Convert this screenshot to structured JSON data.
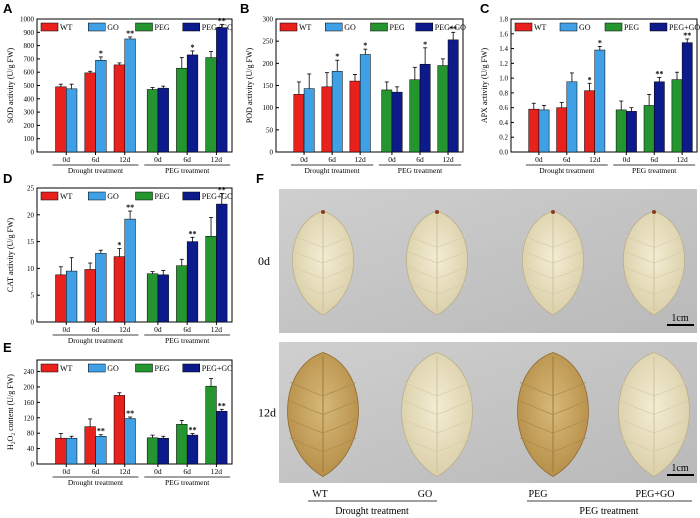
{
  "colors": {
    "WT": "#e8211d",
    "GO": "#3fa0e6",
    "PEG": "#24952f",
    "PEG+GO": "#0d1a8c",
    "axis": "#000000"
  },
  "legend": [
    "WT",
    "GO",
    "PEG",
    "PEG+GO"
  ],
  "chart_data": [
    {
      "panel": "A",
      "type": "bar",
      "ylabel": "SOD activity (U/g FW)",
      "ylim": [
        0,
        1000
      ],
      "yticks": [
        0,
        100,
        200,
        300,
        400,
        500,
        600,
        700,
        800,
        900,
        1000
      ],
      "series": [
        {
          "name": "WT",
          "values": [
            490,
            595,
            655
          ]
        },
        {
          "name": "GO",
          "values": [
            475,
            690,
            850
          ]
        },
        {
          "name": "PEG",
          "values": [
            470,
            630,
            710
          ]
        },
        {
          "name": "PEG+GO",
          "values": [
            480,
            730,
            935
          ]
        }
      ],
      "errors": [
        {
          "name": "WT",
          "values": [
            20,
            12,
            15
          ]
        },
        {
          "name": "GO",
          "values": [
            35,
            25,
            15
          ]
        },
        {
          "name": "PEG",
          "values": [
            15,
            80,
            45
          ]
        },
        {
          "name": "PEG+GO",
          "values": [
            15,
            30,
            25
          ]
        }
      ],
      "marks": [
        {
          "name": "WT",
          "values": [
            "",
            "",
            ""
          ]
        },
        {
          "name": "GO",
          "values": [
            "",
            "*",
            "**"
          ]
        },
        {
          "name": "PEG",
          "values": [
            "",
            "",
            ""
          ]
        },
        {
          "name": "PEG+GO",
          "values": [
            "",
            "*",
            "**"
          ]
        }
      ],
      "groups": [
        {
          "label": "Drought treatment",
          "ticks": [
            "0d",
            "6d",
            "12d"
          ]
        },
        {
          "label": "PEG treatment",
          "ticks": [
            "0d",
            "6d",
            "12d"
          ]
        }
      ]
    },
    {
      "panel": "B",
      "type": "bar",
      "ylabel": "POD activity (U/g FW)",
      "ylim": [
        0,
        300
      ],
      "yticks": [
        0,
        50,
        100,
        150,
        200,
        250,
        300
      ],
      "series": [
        {
          "name": "WT",
          "values": [
            130,
            147,
            160
          ]
        },
        {
          "name": "GO",
          "values": [
            143,
            182,
            220
          ]
        },
        {
          "name": "PEG",
          "values": [
            140,
            163,
            195
          ]
        },
        {
          "name": "PEG+GO",
          "values": [
            135,
            198,
            253
          ]
        }
      ],
      "errors": [
        {
          "name": "WT",
          "values": [
            28,
            32,
            15
          ]
        },
        {
          "name": "GO",
          "values": [
            33,
            25,
            12
          ]
        },
        {
          "name": "PEG",
          "values": [
            18,
            28,
            15
          ]
        },
        {
          "name": "PEG+GO",
          "values": [
            12,
            37,
            17
          ]
        }
      ],
      "marks": [
        {
          "name": "WT",
          "values": [
            "",
            "",
            ""
          ]
        },
        {
          "name": "GO",
          "values": [
            "",
            "*",
            "*"
          ]
        },
        {
          "name": "PEG",
          "values": [
            "",
            "",
            ""
          ]
        },
        {
          "name": "PEG+GO",
          "values": [
            "",
            "*",
            "**"
          ]
        }
      ],
      "groups": [
        {
          "label": "Drought treatment",
          "ticks": [
            "0d",
            "6d",
            "12d"
          ]
        },
        {
          "label": "PEG treatment",
          "ticks": [
            "0d",
            "6d",
            "12d"
          ]
        }
      ]
    },
    {
      "panel": "C",
      "type": "bar",
      "ylabel": "APX activity (U/g FW)",
      "ylim": [
        0,
        1.8
      ],
      "yticks": [
        0,
        0.2,
        0.4,
        0.6,
        0.8,
        1.0,
        1.2,
        1.4,
        1.6,
        1.8
      ],
      "series": [
        {
          "name": "WT",
          "values": [
            0.58,
            0.6,
            0.83
          ]
        },
        {
          "name": "GO",
          "values": [
            0.57,
            0.95,
            1.38
          ]
        },
        {
          "name": "PEG",
          "values": [
            0.57,
            0.63,
            0.98
          ]
        },
        {
          "name": "PEG+GO",
          "values": [
            0.55,
            0.95,
            1.48
          ]
        }
      ],
      "errors": [
        {
          "name": "WT",
          "values": [
            0.08,
            0.07,
            0.1
          ]
        },
        {
          "name": "GO",
          "values": [
            0.06,
            0.12,
            0.05
          ]
        },
        {
          "name": "PEG",
          "values": [
            0.12,
            0.15,
            0.1
          ]
        },
        {
          "name": "PEG+GO",
          "values": [
            0.05,
            0.06,
            0.05
          ]
        }
      ],
      "marks": [
        {
          "name": "WT",
          "values": [
            "",
            "",
            "*"
          ]
        },
        {
          "name": "GO",
          "values": [
            "",
            "",
            "*"
          ]
        },
        {
          "name": "PEG",
          "values": [
            "",
            "",
            ""
          ]
        },
        {
          "name": "PEG+GO",
          "values": [
            "",
            "**",
            "**"
          ]
        }
      ],
      "groups": [
        {
          "label": "Drought treatment",
          "ticks": [
            "0d",
            "6d",
            "12d"
          ]
        },
        {
          "label": "PEG treatment",
          "ticks": [
            "0d",
            "6d",
            "12d"
          ]
        }
      ]
    },
    {
      "panel": "D",
      "type": "bar",
      "ylabel": "CAT activity (U/g FW)",
      "ylim": [
        0,
        25
      ],
      "yticks": [
        0,
        5,
        10,
        15,
        20,
        25
      ],
      "series": [
        {
          "name": "WT",
          "values": [
            8.8,
            9.8,
            12.2
          ]
        },
        {
          "name": "GO",
          "values": [
            9.5,
            12.8,
            19.2
          ]
        },
        {
          "name": "PEG",
          "values": [
            9.0,
            10.5,
            16.0
          ]
        },
        {
          "name": "PEG+GO",
          "values": [
            8.8,
            15.0,
            22.0
          ]
        }
      ],
      "errors": [
        {
          "name": "WT",
          "values": [
            1.5,
            1.2,
            1.5
          ]
        },
        {
          "name": "GO",
          "values": [
            2.5,
            0.6,
            1.5
          ]
        },
        {
          "name": "PEG",
          "values": [
            0.4,
            1.2,
            3.5
          ]
        },
        {
          "name": "PEG+GO",
          "values": [
            0.8,
            0.8,
            2.0
          ]
        }
      ],
      "marks": [
        {
          "name": "WT",
          "values": [
            "",
            "",
            "*"
          ]
        },
        {
          "name": "GO",
          "values": [
            "",
            "",
            "**"
          ]
        },
        {
          "name": "PEG",
          "values": [
            "",
            "",
            ""
          ]
        },
        {
          "name": "PEG+GO",
          "values": [
            "",
            "**",
            "**"
          ]
        }
      ],
      "groups": [
        {
          "label": "Drought treatment",
          "ticks": [
            "0d",
            "6d",
            "12d"
          ]
        },
        {
          "label": "PEG treatment",
          "ticks": [
            "0d",
            "6d",
            "12d"
          ]
        }
      ]
    },
    {
      "panel": "E",
      "type": "bar",
      "ylabel": "H2O2 content (U/g FW)",
      "ylabel_parts": [
        "H",
        "2",
        "O",
        "2",
        " content (U/g FW)"
      ],
      "ylim": [
        0,
        270
      ],
      "yticks": [
        0,
        40,
        80,
        120,
        160,
        200,
        240
      ],
      "series": [
        {
          "name": "WT",
          "values": [
            67,
            97,
            178
          ]
        },
        {
          "name": "GO",
          "values": [
            67,
            72,
            118
          ]
        },
        {
          "name": "PEG",
          "values": [
            68,
            103,
            202
          ]
        },
        {
          "name": "PEG+GO",
          "values": [
            67,
            75,
            137
          ]
        }
      ],
      "errors": [
        {
          "name": "WT",
          "values": [
            12,
            20,
            7
          ]
        },
        {
          "name": "GO",
          "values": [
            5,
            4,
            4
          ]
        },
        {
          "name": "PEG",
          "values": [
            7,
            10,
            20
          ]
        },
        {
          "name": "PEG+GO",
          "values": [
            5,
            4,
            5
          ]
        }
      ],
      "marks": [
        {
          "name": "WT",
          "values": [
            "",
            "",
            ""
          ]
        },
        {
          "name": "GO",
          "values": [
            "",
            "**",
            "**"
          ]
        },
        {
          "name": "PEG",
          "values": [
            "",
            "",
            ""
          ]
        },
        {
          "name": "PEG+GO",
          "values": [
            "",
            "**",
            "**"
          ]
        }
      ],
      "groups": [
        {
          "label": "Drought treatment",
          "ticks": [
            "0d",
            "6d",
            "12d"
          ]
        },
        {
          "label": "PEG treatment",
          "ticks": [
            "0d",
            "6d",
            "12d"
          ]
        }
      ]
    }
  ],
  "photo_panel": {
    "letter": "F",
    "row_labels": [
      "0d",
      "12d"
    ],
    "scale_bar": "1cm",
    "bottom_labels": [
      "WT",
      "GO",
      "PEG",
      "PEG+GO"
    ],
    "groups": [
      "Drought treatment",
      "PEG treatment"
    ]
  }
}
